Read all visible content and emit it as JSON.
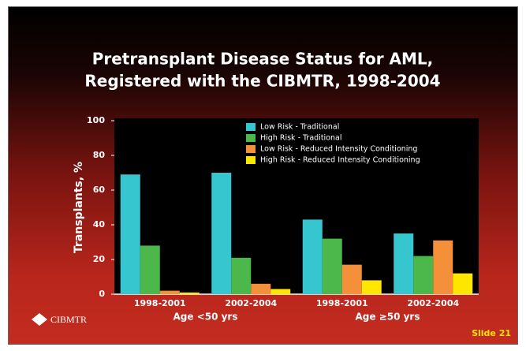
{
  "chart_data": {
    "type": "bar",
    "title": [
      "Pretransplant Disease Status for AML,",
      "Registered with the CIBMTR, 1998-2004"
    ],
    "y_label": "Transplants, %",
    "categories": [
      "1998-2001",
      "2002-2004",
      "1998-2001",
      "2002-2004"
    ],
    "category_groups": [
      "Age <50 yrs",
      "Age ≥50 yrs"
    ],
    "series": [
      {
        "name": "Low Risk - Traditional",
        "color": "#35c6d0",
        "values": [
          69,
          70,
          43,
          35
        ]
      },
      {
        "name": "High Risk - Traditional",
        "color": "#4cb84c",
        "values": [
          28,
          21,
          32,
          22
        ]
      },
      {
        "name": "Low Risk - Reduced Intensity Conditioning",
        "color": "#f4903a",
        "values": [
          2,
          6,
          17,
          31
        ]
      },
      {
        "name": "High Risk - Reduced Intensity Conditioning",
        "color": "#ffe600",
        "values": [
          1,
          3,
          8,
          12
        ]
      }
    ],
    "ylim": [
      0,
      100
    ],
    "yticks": [
      0,
      20,
      40,
      60,
      80,
      100
    ],
    "legend": "upper right"
  },
  "logo": "CIBMTR",
  "slide_label": "Slide 21"
}
